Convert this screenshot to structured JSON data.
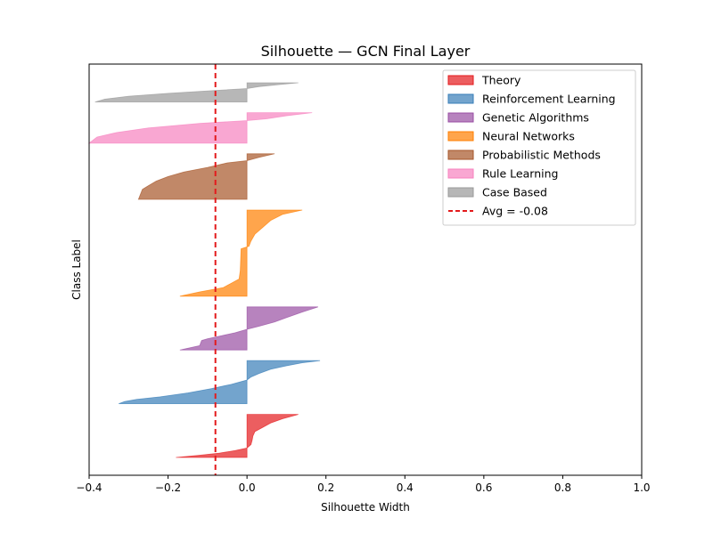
{
  "chart_data": {
    "type": "area",
    "title": "Silhouette — GCN Final Layer",
    "xlabel": "Silhouette Width",
    "ylabel": "Class Label",
    "xlim": [
      -0.4,
      1.0
    ],
    "xticks": [
      -0.4,
      -0.2,
      0.0,
      0.2,
      0.4,
      0.6,
      0.8,
      1.0
    ],
    "xtick_labels": [
      "−0.4",
      "−0.2",
      "0.0",
      "0.2",
      "0.4",
      "0.6",
      "0.8",
      "1.0"
    ],
    "grid": false,
    "legend_position": "top-right",
    "average": {
      "value": -0.08,
      "label": "Avg = -0.08",
      "color": "#e31a1c"
    },
    "series": [
      {
        "name": "Theory",
        "color": "#e41a1c",
        "size": 85,
        "profile": [
          [
            0.0,
            0.13
          ],
          [
            0.1,
            0.09
          ],
          [
            0.2,
            0.06
          ],
          [
            0.3,
            0.04
          ],
          [
            0.4,
            0.02
          ],
          [
            0.5,
            0.015
          ],
          [
            0.6,
            0.013
          ],
          [
            0.7,
            0.01
          ],
          [
            0.78,
            0.0
          ],
          [
            0.84,
            -0.03
          ],
          [
            0.9,
            -0.07
          ],
          [
            0.95,
            -0.12
          ],
          [
            1.0,
            -0.18
          ]
        ]
      },
      {
        "name": "Reinforcement Learning",
        "color": "#377eb8",
        "size": 85,
        "profile": [
          [
            0.0,
            0.185
          ],
          [
            0.05,
            0.14
          ],
          [
            0.12,
            0.1
          ],
          [
            0.2,
            0.06
          ],
          [
            0.3,
            0.03
          ],
          [
            0.38,
            0.01
          ],
          [
            0.45,
            0.0
          ],
          [
            0.55,
            -0.04
          ],
          [
            0.65,
            -0.09
          ],
          [
            0.75,
            -0.15
          ],
          [
            0.84,
            -0.22
          ],
          [
            0.9,
            -0.28
          ],
          [
            0.95,
            -0.31
          ],
          [
            1.0,
            -0.325
          ]
        ]
      },
      {
        "name": "Genetic Algorithms",
        "color": "#984ea3",
        "size": 85,
        "profile": [
          [
            0.0,
            0.18
          ],
          [
            0.12,
            0.14
          ],
          [
            0.25,
            0.1
          ],
          [
            0.35,
            0.07
          ],
          [
            0.45,
            0.03
          ],
          [
            0.52,
            0.0
          ],
          [
            0.6,
            -0.03
          ],
          [
            0.68,
            -0.07
          ],
          [
            0.74,
            -0.1
          ],
          [
            0.78,
            -0.115
          ],
          [
            0.9,
            -0.12
          ],
          [
            1.0,
            -0.17
          ]
        ]
      },
      {
        "name": "Neural Networks",
        "color": "#ff7f00",
        "size": 170,
        "profile": [
          [
            0.0,
            0.14
          ],
          [
            0.05,
            0.09
          ],
          [
            0.12,
            0.06
          ],
          [
            0.2,
            0.04
          ],
          [
            0.28,
            0.02
          ],
          [
            0.36,
            0.01
          ],
          [
            0.42,
            0.005
          ],
          [
            0.45,
            -0.015
          ],
          [
            0.7,
            -0.017
          ],
          [
            0.8,
            -0.02
          ],
          [
            0.85,
            -0.04
          ],
          [
            0.9,
            -0.06
          ],
          [
            0.95,
            -0.12
          ],
          [
            1.0,
            -0.17
          ]
        ]
      },
      {
        "name": "Probabilistic Methods",
        "color": "#a65628",
        "size": 90,
        "profile": [
          [
            0.0,
            0.07
          ],
          [
            0.08,
            0.03
          ],
          [
            0.15,
            0.0
          ],
          [
            0.2,
            -0.05
          ],
          [
            0.3,
            -0.1
          ],
          [
            0.4,
            -0.16
          ],
          [
            0.5,
            -0.2
          ],
          [
            0.6,
            -0.23
          ],
          [
            0.7,
            -0.25
          ],
          [
            0.78,
            -0.265
          ],
          [
            1.0,
            -0.275
          ]
        ]
      },
      {
        "name": "Rule Learning",
        "color": "#f781bf",
        "size": 60,
        "profile": [
          [
            0.0,
            0.165
          ],
          [
            0.1,
            0.1
          ],
          [
            0.2,
            0.05
          ],
          [
            0.26,
            0.0
          ],
          [
            0.35,
            -0.12
          ],
          [
            0.5,
            -0.25
          ],
          [
            0.65,
            -0.33
          ],
          [
            0.8,
            -0.38
          ],
          [
            1.0,
            -0.4
          ]
        ]
      },
      {
        "name": "Case Based",
        "color": "#999999",
        "size": 38,
        "profile": [
          [
            0.0,
            0.13
          ],
          [
            0.1,
            0.08
          ],
          [
            0.2,
            0.03
          ],
          [
            0.3,
            0.0
          ],
          [
            0.4,
            -0.08
          ],
          [
            0.55,
            -0.2
          ],
          [
            0.7,
            -0.3
          ],
          [
            0.85,
            -0.36
          ],
          [
            1.0,
            -0.385
          ]
        ]
      }
    ]
  }
}
